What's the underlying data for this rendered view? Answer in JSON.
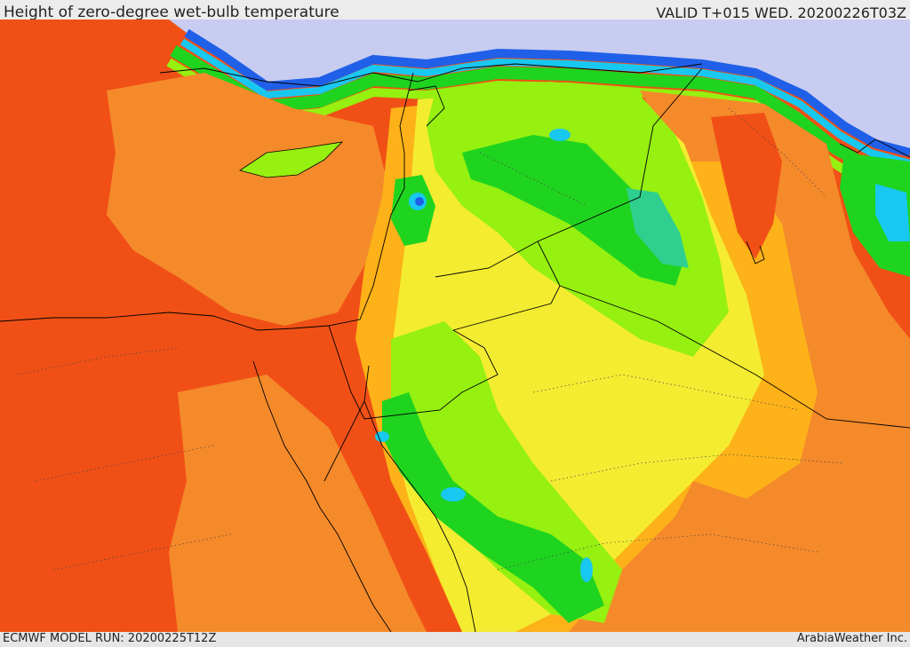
{
  "header": {
    "title": "Height of zero-degree wet-bulb temperature",
    "valid": "VALID T+015 WED. 20200226T03Z"
  },
  "footer": {
    "model_run": "ECMWF MODEL RUN: 20200225T12Z",
    "credit": "ArabiaWeather Inc."
  },
  "palette": {
    "very_high": "#f05016",
    "high": "#f58a2a",
    "mid_high": "#fcb218",
    "mid": "#f4ec30",
    "mid_low": "#96f010",
    "low": "#1fd41f",
    "lower": "#2fcf8f",
    "cyan": "#18c8f0",
    "blue": "#2060e8",
    "sea_lavender": "#c8ccf0",
    "borders": "#000000"
  }
}
